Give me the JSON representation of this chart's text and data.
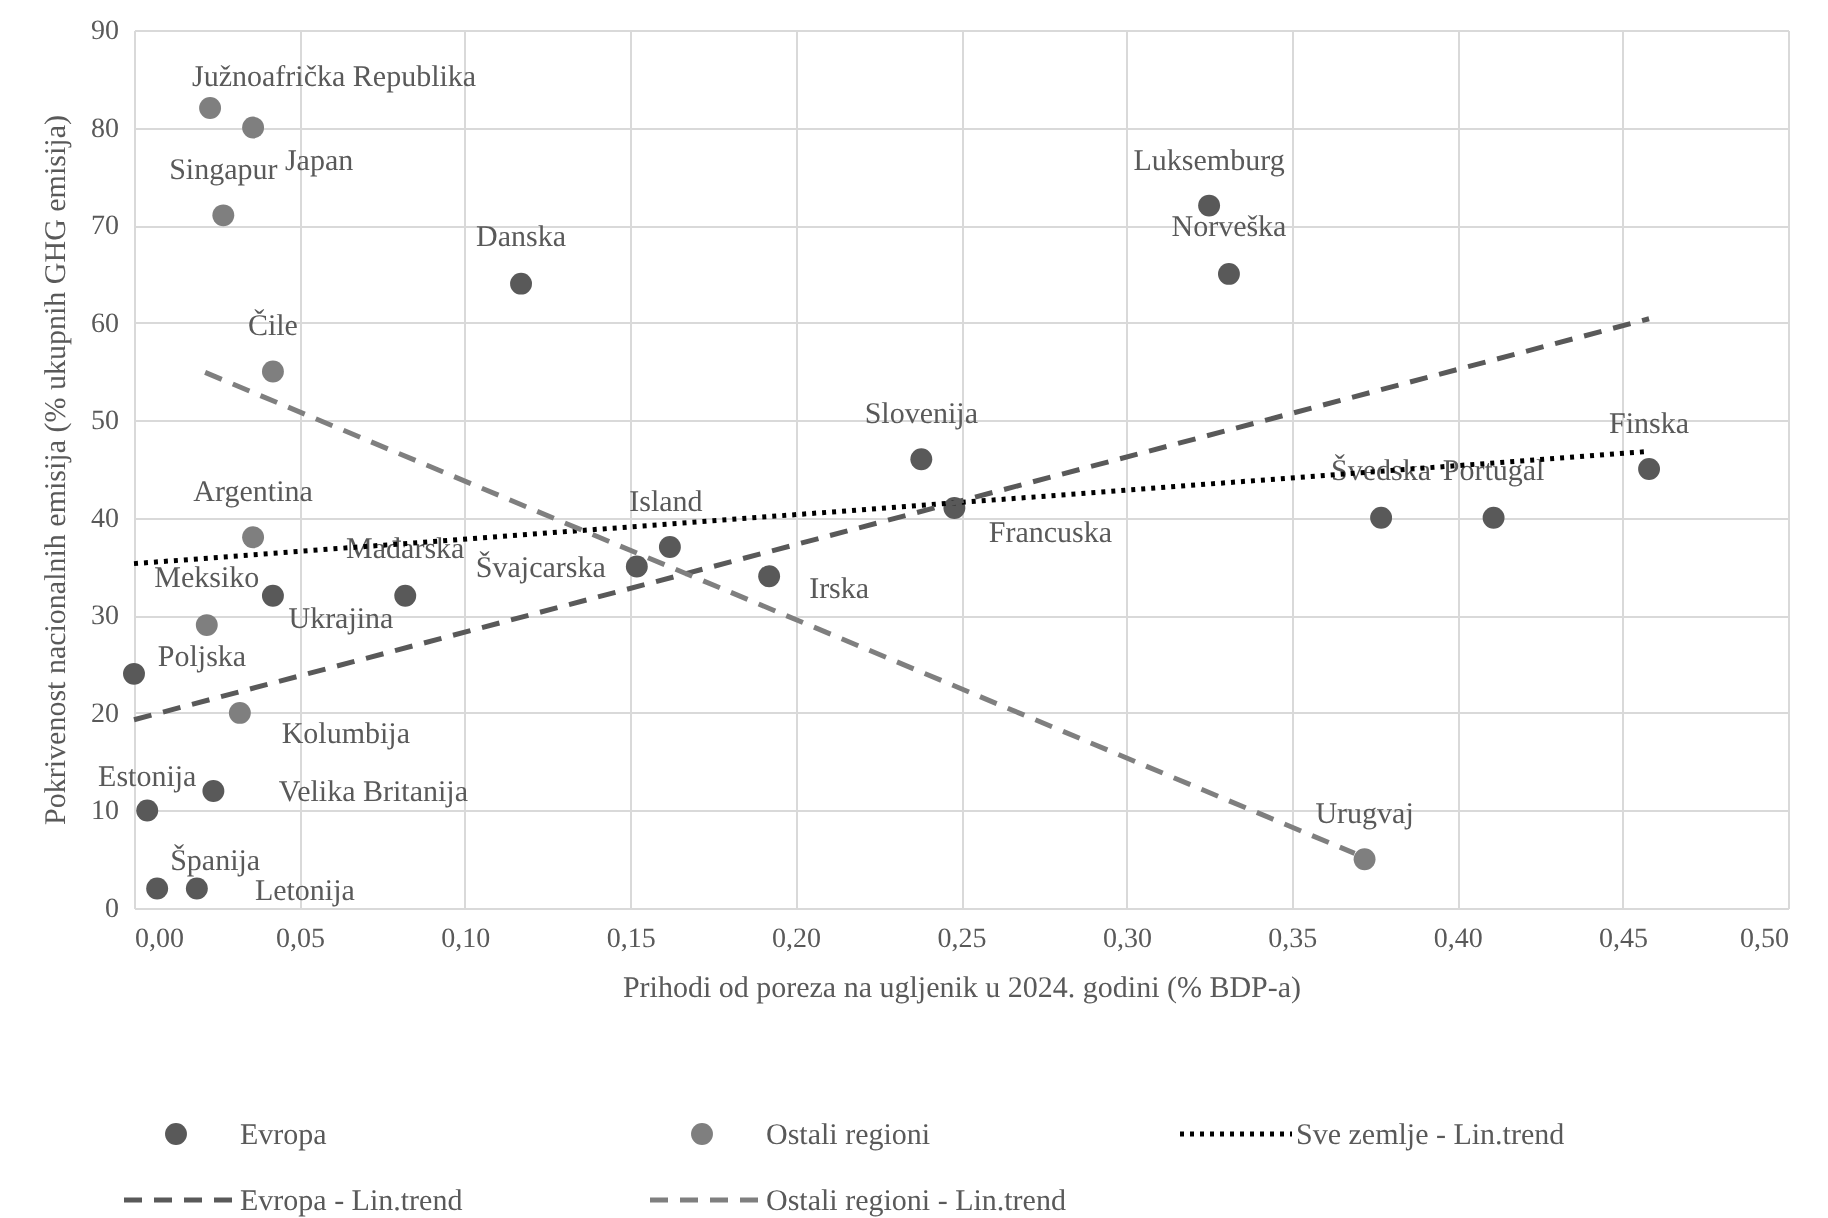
{
  "chart_data": {
    "type": "scatter",
    "xlabel": "Prihodi od poreza na ugljenik u 2024. godini (% BDP-a)",
    "ylabel": "Pokrivenost nacionalnih emisija (% ukupnih GHG emisija)",
    "xlim": [
      0,
      0.5
    ],
    "xticks": [
      {
        "value": 0,
        "label": "0,00"
      },
      {
        "value": 0.05,
        "label": "0,05"
      },
      {
        "value": 0.1,
        "label": "0,10"
      },
      {
        "value": 0.15,
        "label": "0,15"
      },
      {
        "value": 0.2,
        "label": "0,20"
      },
      {
        "value": 0.25,
        "label": "0,25"
      },
      {
        "value": 0.3,
        "label": "0,30"
      },
      {
        "value": 0.35,
        "label": "0,35"
      },
      {
        "value": 0.4,
        "label": "0,40"
      },
      {
        "value": 0.45,
        "label": "0,45"
      },
      {
        "value": 0.5,
        "label": "0,50"
      }
    ],
    "ylim": [
      0,
      90
    ],
    "yticks": [
      0,
      10,
      20,
      30,
      40,
      50,
      60,
      70,
      80,
      90
    ],
    "grid": true,
    "legend": "bottom",
    "series": [
      {
        "name": "Evropa",
        "type": "scatter",
        "marker": "circle",
        "color": "#595959",
        "x": [
          0.117,
          0.042,
          0.082,
          0.0,
          0.024,
          0.004,
          0.007,
          0.019,
          0.152,
          0.162,
          0.192,
          0.238,
          0.248,
          0.325,
          0.331,
          0.377,
          0.411,
          0.458
        ],
        "values": [
          64,
          32,
          32,
          24,
          12,
          10,
          2,
          2,
          35,
          37,
          34,
          46,
          41,
          72,
          65,
          40,
          40,
          45
        ],
        "value_labels": [
          "Danska",
          "Ukrajina",
          "Mađarska",
          "Poljska",
          "Velika Britanija",
          "Estonija",
          "Španija",
          "Letonija",
          "Švajcarska",
          "Island",
          "Irska",
          "Slovenija",
          "Francuska",
          "Luksemburg",
          "Norveška",
          "Švedska",
          "Portugal",
          "Finska"
        ]
      },
      {
        "name": "Ostali regioni",
        "type": "scatter",
        "marker": "circle",
        "color": "#7f7f7f",
        "x": [
          0.023,
          0.036,
          0.027,
          0.042,
          0.036,
          0.022,
          0.032,
          0.372
        ],
        "values": [
          82,
          80,
          71,
          55,
          38,
          29,
          20,
          5
        ],
        "value_labels": [
          "Južnoafrička Republika",
          "Japan",
          "Singapur",
          "Čile",
          "Argentina",
          "Meksiko",
          "Kolumbija",
          "Urugvaj"
        ]
      },
      {
        "name": "Sve zemlje - Lin.trend",
        "type": "line",
        "line_style": "dotted",
        "color": "#000000",
        "x": [
          0,
          0.458
        ],
        "values": [
          35.3,
          46.8
        ]
      },
      {
        "name": "Evropa - Lin.trend",
        "type": "line",
        "line_style": "dashed",
        "color": "#595959",
        "x": [
          0,
          0.458
        ],
        "values": [
          19.3,
          60.4
        ]
      },
      {
        "name": "Ostali regioni - Lin.trend",
        "type": "line",
        "line_style": "dashed",
        "color": "#7f7f7f",
        "x": [
          0.0215,
          0.369
        ],
        "values": [
          54.9,
          5.6
        ]
      }
    ]
  }
}
